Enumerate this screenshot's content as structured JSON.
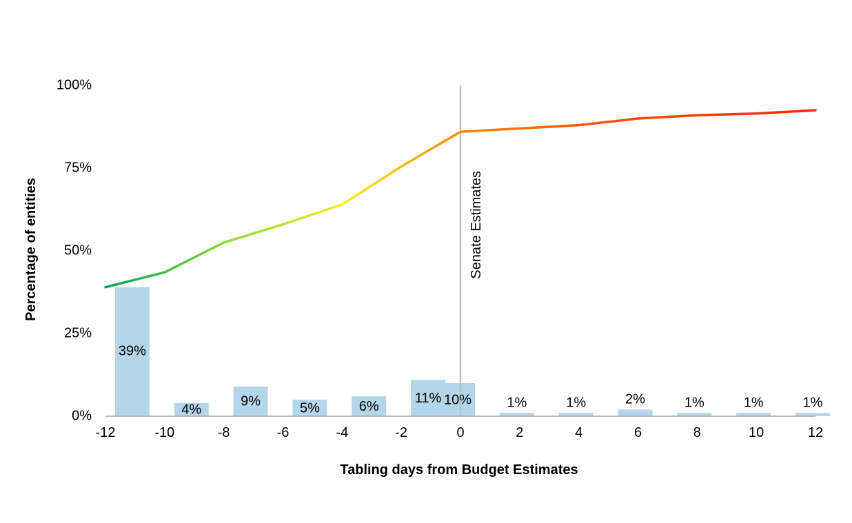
{
  "chart_data": {
    "type": "bar",
    "x_ticks": [
      "-12",
      "-10",
      "-8",
      "-6",
      "-4",
      "-2",
      "0",
      "2",
      "4",
      "6",
      "8",
      "10",
      "12"
    ],
    "y_ticks": [
      "0%",
      "25%",
      "50%",
      "75%",
      "100%"
    ],
    "xlabel": "Tabling days from Budget Estimates",
    "ylabel": "Percentage of entities",
    "xlim": [
      -12,
      12
    ],
    "ylim": [
      0,
      100
    ],
    "grid": false,
    "bars": {
      "x": [
        -11,
        -9,
        -7,
        -5,
        -3,
        -1,
        0,
        2,
        4,
        6,
        8,
        10,
        12
      ],
      "values": [
        39,
        4,
        9,
        5,
        6,
        11,
        10,
        1,
        1,
        2,
        1,
        1,
        1
      ],
      "labels": [
        "39%",
        "4%",
        "9%",
        "5%",
        "6%",
        "11%",
        "10%",
        "1%",
        "1%",
        "2%",
        "1%",
        "1%",
        "1%"
      ],
      "color": "#b4d6ea"
    },
    "cumulative_line": {
      "x": [
        -12,
        -10,
        -8,
        -6,
        -4,
        -2,
        0,
        2,
        4,
        6,
        8,
        10,
        12
      ],
      "values": [
        39,
        43.5,
        52.5,
        58,
        64,
        75.5,
        86,
        87,
        88,
        90,
        91,
        91.5,
        92.5
      ],
      "gradient_colors": [
        "#00a651",
        "#8dd63c",
        "#f2ef1c",
        "#ff8a00",
        "#ff5a00",
        "#ff3b00",
        "#ff2600"
      ]
    },
    "reference_line": {
      "x": 0,
      "label": "Senate Estimates",
      "color": "#bfbfbf"
    }
  }
}
